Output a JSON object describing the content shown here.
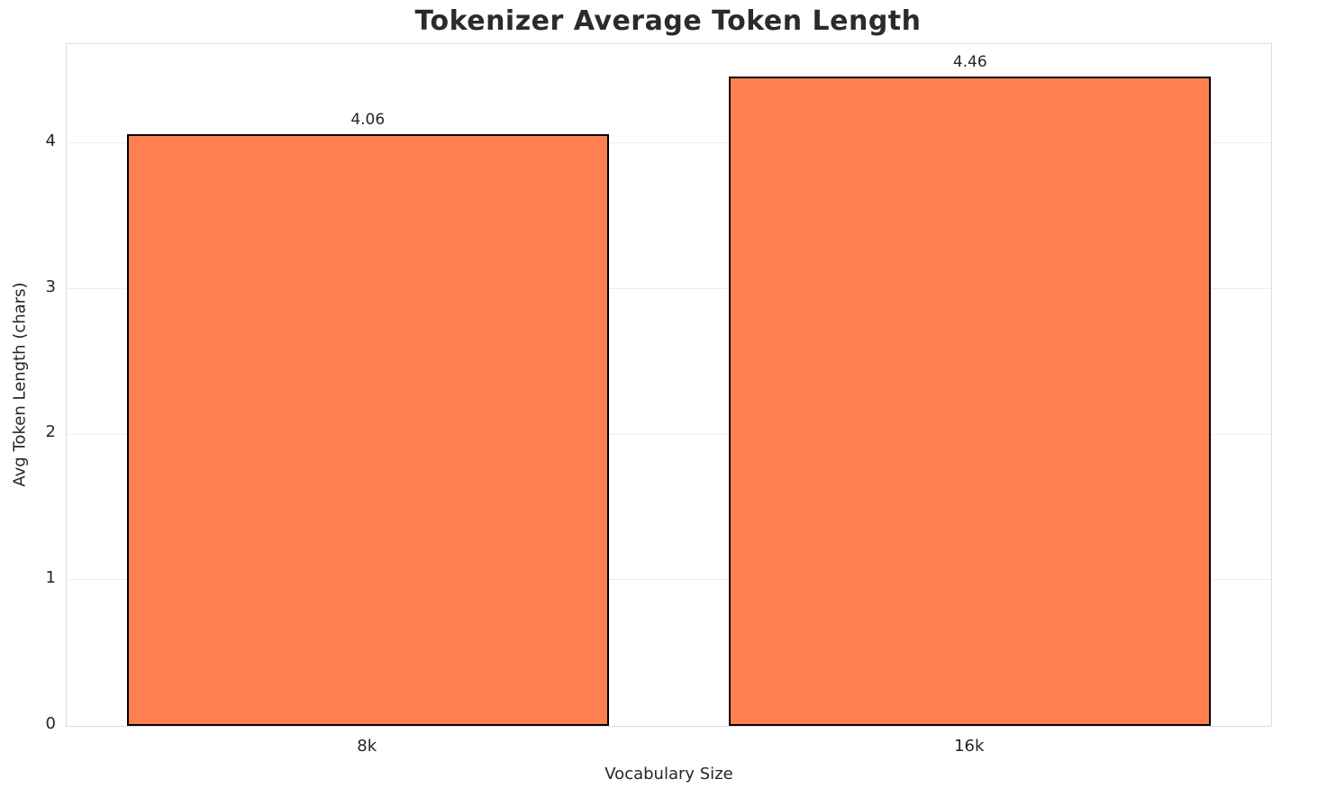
{
  "chart_data": {
    "type": "bar",
    "title": "Tokenizer Average Token Length",
    "xlabel": "Vocabulary Size",
    "ylabel": "Avg Token Length (chars)",
    "categories": [
      "8k",
      "16k"
    ],
    "values": [
      4.06,
      4.46
    ],
    "value_labels": [
      "4.06",
      "4.46"
    ],
    "yticks": [
      0,
      1,
      2,
      3,
      4
    ],
    "ytick_labels": [
      "0",
      "1",
      "2",
      "3",
      "4"
    ],
    "ylim": [
      0,
      4.68
    ],
    "bar_width_fraction": 0.8,
    "bar_color": "#FF7F50",
    "bar_edge_color": "#000000",
    "grid": true,
    "legend": "none",
    "background_color": "#ffffff"
  }
}
